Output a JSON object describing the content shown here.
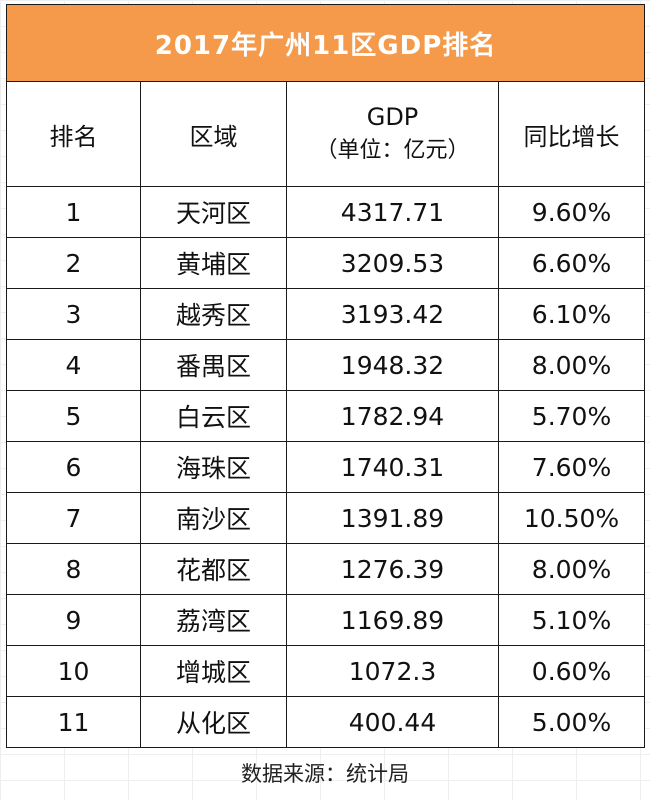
{
  "chart_data": {
    "type": "table",
    "title": "2017年广州11区GDP排名",
    "columns": [
      "排名",
      "区域",
      "GDP",
      "同比增长"
    ],
    "gdp_unit": "（单位：亿元）",
    "rows": [
      {
        "rank": "1",
        "district": "天河区",
        "gdp": "4317.71",
        "growth": "9.60%"
      },
      {
        "rank": "2",
        "district": "黄埔区",
        "gdp": "3209.53",
        "growth": "6.60%"
      },
      {
        "rank": "3",
        "district": "越秀区",
        "gdp": "3193.42",
        "growth": "6.10%"
      },
      {
        "rank": "4",
        "district": "番禺区",
        "gdp": "1948.32",
        "growth": "8.00%"
      },
      {
        "rank": "5",
        "district": "白云区",
        "gdp": "1782.94",
        "growth": "5.70%"
      },
      {
        "rank": "6",
        "district": "海珠区",
        "gdp": "1740.31",
        "growth": "7.60%"
      },
      {
        "rank": "7",
        "district": "南沙区",
        "gdp": "1391.89",
        "growth": "10.50%"
      },
      {
        "rank": "8",
        "district": "花都区",
        "gdp": "1276.39",
        "growth": "8.00%"
      },
      {
        "rank": "9",
        "district": "荔湾区",
        "gdp": "1169.89",
        "growth": "5.10%"
      },
      {
        "rank": "10",
        "district": "增城区",
        "gdp": "1072.3",
        "growth": "0.60%"
      },
      {
        "rank": "11",
        "district": "从化区",
        "gdp": "400.44",
        "growth": "5.00%"
      }
    ],
    "source": "数据来源：统计局"
  },
  "colors": {
    "title_bg": "#f59a4a",
    "title_text": "#ffffff",
    "border": "#1a1a1a"
  }
}
